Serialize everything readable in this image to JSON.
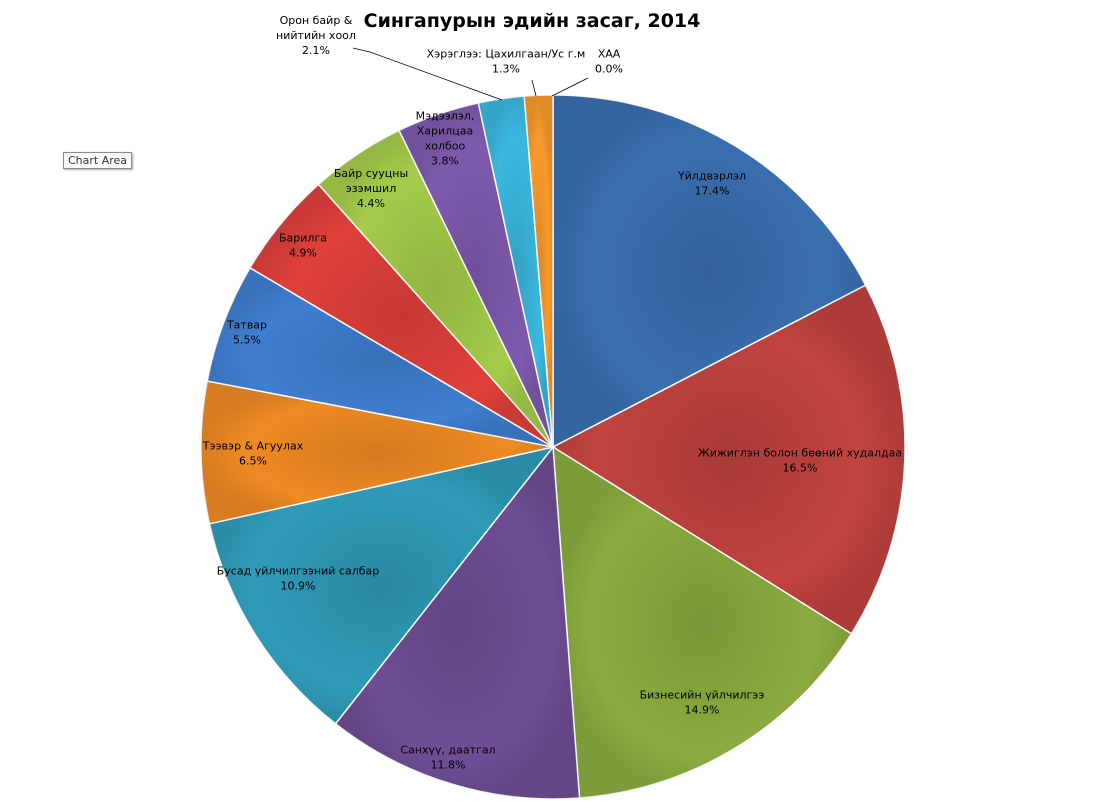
{
  "tooltip": {
    "text": "Chart Area"
  },
  "colors": {
    "blue": "#3a6fb0",
    "red": "#c0433f",
    "green": "#8aac3f",
    "purple": "#6f4e96",
    "teal": "#2f9bb8",
    "orange": "#ef8a23",
    "bright_green": "#a4cc4a",
    "bright_blue": "#3f7fd0",
    "bright_red": "#e0403a",
    "bright_teal": "#3ab8df",
    "bright_orange": "#f79a2c"
  },
  "chart_data": {
    "type": "pie",
    "title": "Сингапурын эдийн засаг, 2014",
    "legend": "none",
    "slices": [
      {
        "label": "Үйлдвэрлэл",
        "value": 17.4,
        "pct": "17.4%",
        "color": "#3a6fb0"
      },
      {
        "label": "Жижиглэн болон бөөний худалдаа",
        "value": 16.5,
        "pct": "16.5%",
        "color": "#c0433f"
      },
      {
        "label": "Бизнесийн үйлчилгээ",
        "value": 14.9,
        "pct": "14.9%",
        "color": "#8aac3f"
      },
      {
        "label": "Санхүү, даатгал",
        "value": 11.8,
        "pct": "11.8%",
        "color": "#6f4e96"
      },
      {
        "label": "Бусад үйлчилгээний салбар",
        "value": 10.9,
        "pct": "10.9%",
        "color": "#2f9bb8"
      },
      {
        "label": "Тээвэр & Агуулах",
        "value": 6.5,
        "pct": "6.5%",
        "color": "#ef8a23"
      },
      {
        "label": "Татвар",
        "value": 5.5,
        "pct": "5.5%",
        "color": "#3f7fd0"
      },
      {
        "label": "Барилга",
        "value": 4.9,
        "pct": "4.9%",
        "color": "#e0403a"
      },
      {
        "label": "Байр сууцны эзэмшил",
        "value": 4.4,
        "pct": "4.4%",
        "color": "#a4cc4a"
      },
      {
        "label": "Мэдээлэл, Харилцаа холбоо",
        "value": 3.8,
        "pct": "3.8%",
        "color": "#7e5aae"
      },
      {
        "label": "Орон байр & нийтийн хоол",
        "value": 2.1,
        "pct": "2.1%",
        "color": "#3ab8df"
      },
      {
        "label": "Хэрэглээ: Цахилгаан/Ус г.м",
        "value": 1.3,
        "pct": "1.3%",
        "color": "#f79a2c"
      },
      {
        "label": "ХАА",
        "value": 0.0,
        "pct": "0.0%",
        "color": "#3a6fb0"
      }
    ]
  }
}
